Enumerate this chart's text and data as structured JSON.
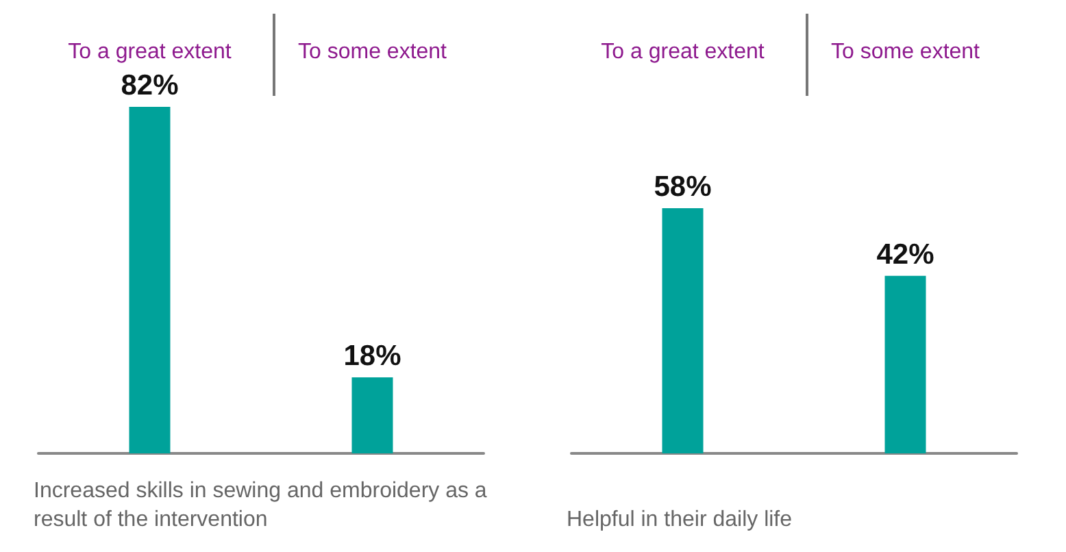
{
  "chart_data": [
    {
      "type": "bar",
      "categories": [
        "To a great extent",
        "To some extent"
      ],
      "values": [
        82,
        18
      ],
      "value_labels": [
        "82%",
        "18%"
      ],
      "color": "#00a29a",
      "xlabel": "Increased skills in sewing and embroidery as a result of the intervention",
      "tick_labels": "x"
    },
    {
      "type": "bar",
      "categories": [
        "To a great extent",
        "To some extent"
      ],
      "values": [
        58,
        42
      ],
      "value_labels": [
        "58%",
        "42%"
      ],
      "color": "#00a29a",
      "xlabel": "Helpful in their daily life",
      "tick_labels": "x"
    }
  ]
}
